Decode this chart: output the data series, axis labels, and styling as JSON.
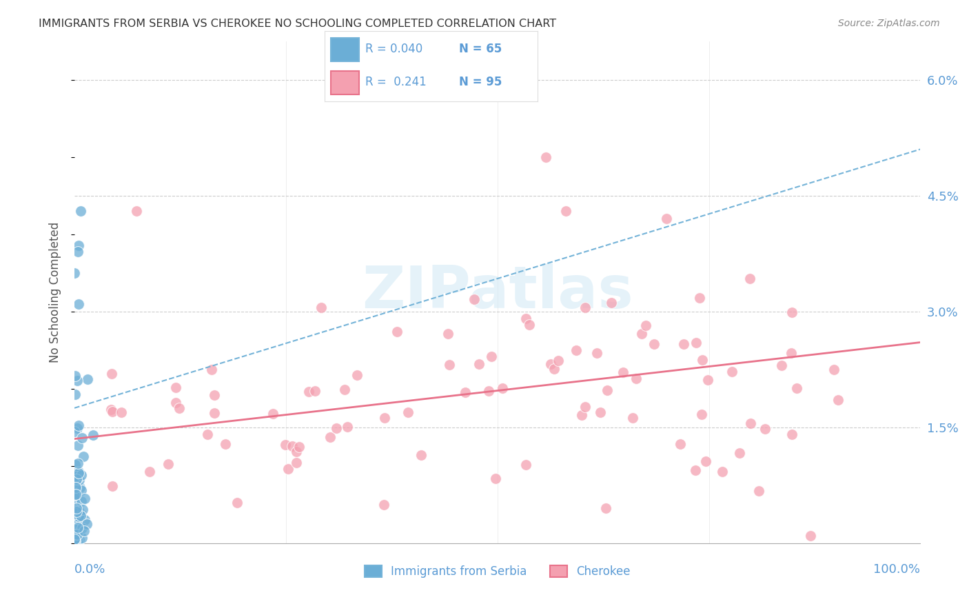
{
  "title": "IMMIGRANTS FROM SERBIA VS CHEROKEE NO SCHOOLING COMPLETED CORRELATION CHART",
  "source": "Source: ZipAtlas.com",
  "ylabel": "No Schooling Completed",
  "xlim": [
    0,
    100
  ],
  "ylim": [
    0,
    6.5
  ],
  "yticks": [
    1.5,
    3.0,
    4.5,
    6.0
  ],
  "background_color": "#ffffff",
  "blue_color": "#6baed6",
  "pink_color": "#f4a0b0",
  "blue_line_color": "#74b3d8",
  "pink_line_color": "#e8728a",
  "legend_blue_R": "0.040",
  "legend_blue_N": "65",
  "legend_pink_R": "0.241",
  "legend_pink_N": "95",
  "grid_color": "#cccccc",
  "title_color": "#333333",
  "axis_label_color": "#5b9bd5",
  "blue_trend_start": 1.75,
  "blue_trend_end": 5.1,
  "pink_trend_start": 1.35,
  "pink_trend_end": 2.6
}
